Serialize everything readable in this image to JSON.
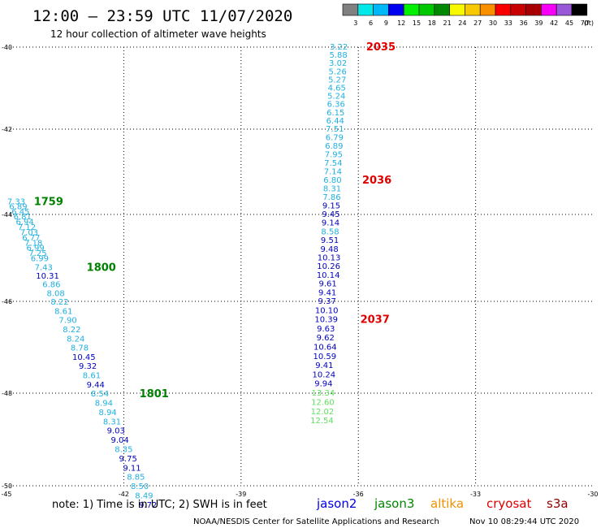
{
  "header": {
    "title": "12:00 — 23:59 UTC 11/07/2020",
    "subtitle": "12 hour collection of altimeter wave heights"
  },
  "colorbar": {
    "unit": "(ft)",
    "bins": [
      {
        "color": "#808080",
        "label": "3"
      },
      {
        "color": "#00e8e8",
        "label": "6"
      },
      {
        "color": "#00b8f8",
        "label": "9"
      },
      {
        "color": "#0000f0",
        "label": "12"
      },
      {
        "color": "#00f000",
        "label": "15"
      },
      {
        "color": "#00c800",
        "label": "18"
      },
      {
        "color": "#008800",
        "label": "21"
      },
      {
        "color": "#f8f800",
        "label": "24"
      },
      {
        "color": "#f8c800",
        "label": "27"
      },
      {
        "color": "#f89000",
        "label": "30"
      },
      {
        "color": "#f80000",
        "label": "33"
      },
      {
        "color": "#c80000",
        "label": "36"
      },
      {
        "color": "#a80000",
        "label": "39"
      },
      {
        "color": "#f800f8",
        "label": "42"
      },
      {
        "color": "#9858d8",
        "label": "45"
      },
      {
        "color": "#000000",
        "label": "70"
      }
    ]
  },
  "axes": {
    "lon_ticks": [
      "-45",
      "-42",
      "-39",
      "-36",
      "-33",
      "-30"
    ],
    "lat_ticks": [
      "-40",
      "-42",
      "-44",
      "-46",
      "-48",
      "-50"
    ]
  },
  "tracks": [
    {
      "satellite": "s3a",
      "points": [
        {
          "lon": -44.75,
          "lat": -43.7,
          "text": "7.33",
          "color": "#20b0e0"
        },
        {
          "lon": -44.7,
          "lat": -43.82,
          "text": "6.89",
          "color": "#20b0e0"
        },
        {
          "lon": -44.64,
          "lat": -43.94,
          "text": "6.45",
          "color": "#20b0e0"
        },
        {
          "lon": -44.59,
          "lat": -44.06,
          "text": "6.81",
          "color": "#20b0e0"
        },
        {
          "lon": -44.53,
          "lat": -44.18,
          "text": "6.94",
          "color": "#20b0e0"
        },
        {
          "lon": -44.48,
          "lat": -44.3,
          "text": "7.12",
          "color": "#20b0e0"
        },
        {
          "lon": -44.42,
          "lat": -44.42,
          "text": "7.03",
          "color": "#20b0e0"
        },
        {
          "lon": -44.37,
          "lat": -44.54,
          "text": "6.77",
          "color": "#20b0e0"
        },
        {
          "lon": -44.31,
          "lat": -44.66,
          "text": "7.18",
          "color": "#20b0e0"
        },
        {
          "lon": -44.26,
          "lat": -44.78,
          "text": "6.99",
          "color": "#20b0e0"
        },
        {
          "lon": -44.2,
          "lat": -44.9,
          "text": "7.25",
          "color": "#20b0e0"
        },
        {
          "lon": -44.15,
          "lat": -45.02,
          "text": "6.99",
          "color": "#20b0e0"
        },
        {
          "lon": -44.05,
          "lat": -45.22,
          "text": "7.43",
          "color": "#20b0e0"
        },
        {
          "lon": -43.95,
          "lat": -45.42,
          "text": "10.31",
          "color": "#0000c0"
        },
        {
          "lon": -43.85,
          "lat": -45.62,
          "text": "6.86",
          "color": "#20b0e0"
        },
        {
          "lon": -43.74,
          "lat": -45.82,
          "text": "8.08",
          "color": "#20b0e0"
        },
        {
          "lon": -43.64,
          "lat": -46.02,
          "text": "8.22",
          "color": "#20b0e0"
        },
        {
          "lon": -43.54,
          "lat": -46.22,
          "text": "8.61",
          "color": "#20b0e0"
        },
        {
          "lon": -43.43,
          "lat": -46.42,
          "text": "7.90",
          "color": "#20b0e0"
        },
        {
          "lon": -43.33,
          "lat": -46.62,
          "text": "8.22",
          "color": "#20b0e0"
        },
        {
          "lon": -43.23,
          "lat": -46.82,
          "text": "8.24",
          "color": "#20b0e0"
        },
        {
          "lon": -43.13,
          "lat": -47.02,
          "text": "8.78",
          "color": "#20b0e0"
        },
        {
          "lon": -43.02,
          "lat": -47.22,
          "text": "10.45",
          "color": "#0000c0"
        },
        {
          "lon": -42.92,
          "lat": -47.42,
          "text": "9.32",
          "color": "#0000c0"
        },
        {
          "lon": -42.82,
          "lat": -47.62,
          "text": "8.61",
          "color": "#20b0e0"
        },
        {
          "lon": -42.72,
          "lat": -47.82,
          "text": "9.44",
          "color": "#0000c0"
        },
        {
          "lon": -42.61,
          "lat": -48.02,
          "text": "8.54",
          "color": "#20b0e0"
        },
        {
          "lon": -42.51,
          "lat": -48.22,
          "text": "8.94",
          "color": "#20b0e0"
        },
        {
          "lon": -42.41,
          "lat": -48.42,
          "text": "8.94",
          "color": "#20b0e0"
        },
        {
          "lon": -42.3,
          "lat": -48.62,
          "text": "8.31",
          "color": "#20b0e0"
        },
        {
          "lon": -42.2,
          "lat": -48.82,
          "text": "9.03",
          "color": "#0000c0"
        },
        {
          "lon": -42.1,
          "lat": -49.02,
          "text": "9.04",
          "color": "#0000c0"
        },
        {
          "lon": -42.0,
          "lat": -49.22,
          "text": "8.35",
          "color": "#20b0e0"
        },
        {
          "lon": -41.89,
          "lat": -49.42,
          "text": "9.75",
          "color": "#0000c0"
        },
        {
          "lon": -41.79,
          "lat": -49.62,
          "text": "9.11",
          "color": "#0000c0"
        },
        {
          "lon": -41.69,
          "lat": -49.82,
          "text": "8.85",
          "color": "#20b0e0"
        },
        {
          "lon": -41.59,
          "lat": -50.02,
          "text": "8.50",
          "color": "#20b0e0"
        },
        {
          "lon": -41.48,
          "lat": -50.22,
          "text": "8.49",
          "color": "#20b0e0"
        },
        {
          "lon": -41.38,
          "lat": -50.42,
          "text": "9.72",
          "color": "#0000c0"
        }
      ]
    },
    {
      "satellite": "cryosat",
      "points": [
        {
          "lon": -36.5,
          "lat": -40.0,
          "text": "3.22",
          "color": "#20b0e0"
        },
        {
          "lon": -36.51,
          "lat": -40.2,
          "text": "5.88",
          "color": "#20b0e0"
        },
        {
          "lon": -36.52,
          "lat": -40.4,
          "text": "3.02",
          "color": "#20b0e0"
        },
        {
          "lon": -36.53,
          "lat": -40.6,
          "text": "5.26",
          "color": "#20b0e0"
        },
        {
          "lon": -36.54,
          "lat": -40.8,
          "text": "5.27",
          "color": "#20b0e0"
        },
        {
          "lon": -36.55,
          "lat": -41.0,
          "text": "4.65",
          "color": "#20b0e0"
        },
        {
          "lon": -36.56,
          "lat": -41.2,
          "text": "5.24",
          "color": "#20b0e0"
        },
        {
          "lon": -36.57,
          "lat": -41.4,
          "text": "6.36",
          "color": "#20b0e0"
        },
        {
          "lon": -36.58,
          "lat": -41.6,
          "text": "6.15",
          "color": "#20b0e0"
        },
        {
          "lon": -36.59,
          "lat": -41.8,
          "text": "6.44",
          "color": "#20b0e0"
        },
        {
          "lon": -36.6,
          "lat": -42.0,
          "text": "7.51",
          "color": "#20b0e0"
        },
        {
          "lon": -36.61,
          "lat": -42.2,
          "text": "6.79",
          "color": "#20b0e0"
        },
        {
          "lon": -36.62,
          "lat": -42.4,
          "text": "6.89",
          "color": "#20b0e0"
        },
        {
          "lon": -36.63,
          "lat": -42.6,
          "text": "7.95",
          "color": "#20b0e0"
        },
        {
          "lon": -36.64,
          "lat": -42.8,
          "text": "7.54",
          "color": "#20b0e0"
        },
        {
          "lon": -36.65,
          "lat": -43.0,
          "text": "7.14",
          "color": "#20b0e0"
        },
        {
          "lon": -36.66,
          "lat": -43.2,
          "text": "6.80",
          "color": "#20b0e0"
        },
        {
          "lon": -36.67,
          "lat": -43.4,
          "text": "8.31",
          "color": "#20b0e0"
        },
        {
          "lon": -36.68,
          "lat": -43.6,
          "text": "7.86",
          "color": "#20b0e0"
        },
        {
          "lon": -36.69,
          "lat": -43.8,
          "text": "9.15",
          "color": "#0000c0"
        },
        {
          "lon": -36.7,
          "lat": -44.0,
          "text": "9.45",
          "color": "#0000c0"
        },
        {
          "lon": -36.71,
          "lat": -44.2,
          "text": "9.14",
          "color": "#0000c0"
        },
        {
          "lon": -36.72,
          "lat": -44.4,
          "text": "8.58",
          "color": "#20b0e0"
        },
        {
          "lon": -36.73,
          "lat": -44.6,
          "text": "9.51",
          "color": "#0000c0"
        },
        {
          "lon": -36.74,
          "lat": -44.8,
          "text": "9.48",
          "color": "#0000c0"
        },
        {
          "lon": -36.75,
          "lat": -45.0,
          "text": "10.13",
          "color": "#0000c0"
        },
        {
          "lon": -36.76,
          "lat": -45.2,
          "text": "10.26",
          "color": "#0000c0"
        },
        {
          "lon": -36.77,
          "lat": -45.4,
          "text": "10.14",
          "color": "#0000c0"
        },
        {
          "lon": -36.78,
          "lat": -45.6,
          "text": "9.61",
          "color": "#0000c0"
        },
        {
          "lon": -36.79,
          "lat": -45.8,
          "text": "9.41",
          "color": "#0000c0"
        },
        {
          "lon": -36.8,
          "lat": -46.0,
          "text": "9.37",
          "color": "#0000c0"
        },
        {
          "lon": -36.81,
          "lat": -46.2,
          "text": "10.10",
          "color": "#0000c0"
        },
        {
          "lon": -36.82,
          "lat": -46.4,
          "text": "10.39",
          "color": "#0000c0"
        },
        {
          "lon": -36.83,
          "lat": -46.6,
          "text": "9.63",
          "color": "#0000c0"
        },
        {
          "lon": -36.84,
          "lat": -46.8,
          "text": "9.62",
          "color": "#0000c0"
        },
        {
          "lon": -36.85,
          "lat": -47.0,
          "text": "10.64",
          "color": "#0000c0"
        },
        {
          "lon": -36.86,
          "lat": -47.2,
          "text": "10.59",
          "color": "#0000c0"
        },
        {
          "lon": -36.87,
          "lat": -47.4,
          "text": "9.41",
          "color": "#0000c0"
        },
        {
          "lon": -36.88,
          "lat": -47.6,
          "text": "10.24",
          "color": "#0000c0"
        },
        {
          "lon": -36.89,
          "lat": -47.8,
          "text": "9.94",
          "color": "#0000c0"
        },
        {
          "lon": -36.9,
          "lat": -48.0,
          "text": "13.34",
          "color": "#60e060"
        },
        {
          "lon": -36.91,
          "lat": -48.2,
          "text": "12.60",
          "color": "#60e060"
        },
        {
          "lon": -36.92,
          "lat": -48.4,
          "text": "12.02",
          "color": "#60e060"
        },
        {
          "lon": -36.93,
          "lat": -48.6,
          "text": "12.54",
          "color": "#60e060"
        }
      ]
    }
  ],
  "time_labels": [
    {
      "text": "1759",
      "color": "#008000",
      "lon": -44.3,
      "lat": -43.7
    },
    {
      "text": "1800",
      "color": "#008000",
      "lon": -42.95,
      "lat": -45.22
    },
    {
      "text": "1801",
      "color": "#008000",
      "lon": -41.6,
      "lat": -48.02
    },
    {
      "text": "2035",
      "color": "#e00000",
      "lon": -35.8,
      "lat": -40.0
    },
    {
      "text": "2036",
      "color": "#e00000",
      "lon": -35.9,
      "lat": -43.2
    },
    {
      "text": "2037",
      "color": "#e00000",
      "lon": -35.95,
      "lat": -46.4
    }
  ],
  "footer": {
    "note": "note: 1) Time is in UTC; 2) SWH is in feet",
    "satellites": [
      {
        "name": "jason2",
        "color": "#0000e0"
      },
      {
        "name": "jason3",
        "color": "#008800"
      },
      {
        "name": "altika",
        "color": "#f09000"
      },
      {
        "name": "cryosat",
        "color": "#e00000"
      },
      {
        "name": "s3a",
        "color": "#900000"
      }
    ],
    "credit": "NOAA/NESDIS Center for Satellite Applications and Research",
    "timestamp": "Nov 10 08:29:44 UTC 2020"
  }
}
